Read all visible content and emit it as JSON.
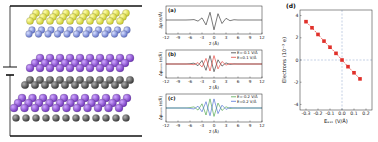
{
  "chart_data": [
    {
      "type": "line",
      "title": "(a)",
      "xlabel": "z (Å)",
      "ylabel": "Δρ (e/Å)",
      "x": [
        -12,
        -11,
        -10,
        -9,
        -8,
        -7,
        -6,
        -5,
        -4,
        -3,
        -2,
        -1,
        0,
        1,
        2,
        3,
        4,
        5,
        6,
        7,
        8,
        9,
        10,
        11,
        12
      ],
      "xlim": [
        -12,
        12
      ],
      "xticks": [
        -12,
        -9,
        -6,
        -3,
        0,
        3,
        6,
        9,
        12
      ],
      "ylim": [
        -1,
        1
      ],
      "tick_labels": "x",
      "series": [
        {
          "color": "#222222",
          "line_style": "solid",
          "values": [
            0,
            0,
            0,
            0,
            0,
            0,
            0.01,
            0.03,
            -0.08,
            0.15,
            -0.35,
            0.55,
            -0.7,
            0.45,
            -0.25,
            0.12,
            -0.05,
            0.02,
            0,
            0,
            0,
            0,
            0,
            0,
            0
          ]
        }
      ]
    },
    {
      "type": "line",
      "title": "(b)",
      "xlabel": "z (Å)",
      "ylabel": "Δρₙₒᵣₘ (e/Å)",
      "x": [
        -12,
        -11,
        -10,
        -9,
        -8,
        -7,
        -6,
        -5,
        -4,
        -3,
        -2,
        -1,
        0,
        1,
        2,
        3,
        4,
        5,
        6,
        7,
        8,
        9,
        10,
        11,
        12
      ],
      "xlim": [
        -12,
        12
      ],
      "xticks": [
        -12,
        -9,
        -6,
        -3,
        0,
        3,
        6,
        9,
        12
      ],
      "ylim": [
        -1,
        1
      ],
      "tick_labels": "x",
      "legend": "upper right",
      "series": [
        {
          "name": "E=-0.1 V/Å",
          "color": "#222222",
          "line_style": "solid",
          "values": [
            0,
            0,
            0,
            0,
            0,
            0,
            0.02,
            0.06,
            -0.12,
            0.25,
            -0.45,
            0.6,
            -0.55,
            0.3,
            -0.15,
            0.08,
            -0.03,
            0.01,
            0,
            0,
            0,
            0,
            0,
            0,
            0
          ]
        },
        {
          "name": "E=0.1 V/Å",
          "color": "#e0302a",
          "line_style": "solid",
          "values": [
            0,
            0,
            0,
            0,
            0,
            0,
            -0.02,
            -0.05,
            0.1,
            -0.22,
            0.4,
            -0.5,
            0.6,
            -0.35,
            0.18,
            -0.08,
            0.03,
            -0.01,
            0,
            0,
            0,
            0,
            0,
            0,
            0
          ]
        }
      ]
    },
    {
      "type": "line",
      "title": "(c)",
      "xlabel": "z (Å)",
      "ylabel": "Δρₙₒᵣₘ (e/Å)",
      "x": [
        -12,
        -11,
        -10,
        -9,
        -8,
        -7,
        -6,
        -5,
        -4,
        -3,
        -2,
        -1,
        0,
        1,
        2,
        3,
        4,
        5,
        6,
        7,
        8,
        9,
        10,
        11,
        12
      ],
      "xlim": [
        -12,
        12
      ],
      "xticks": [
        -12,
        -9,
        -6,
        -3,
        0,
        3,
        6,
        9,
        12
      ],
      "ylim": [
        -1,
        1
      ],
      "tick_labels": "x",
      "legend": "upper right",
      "series": [
        {
          "name": "E=-0.2 V/Å",
          "color": "#3a9a3a",
          "line_style": "solid",
          "values": [
            0,
            0,
            0,
            0,
            0,
            0,
            0.03,
            0.08,
            -0.15,
            0.3,
            -0.5,
            0.65,
            -0.6,
            0.35,
            -0.18,
            0.09,
            -0.04,
            0.01,
            0,
            0,
            0,
            0,
            0,
            0,
            0
          ]
        },
        {
          "name": "E=0.2 V/Å",
          "color": "#3a5fd0",
          "line_style": "solid",
          "values": [
            0,
            0,
            0,
            0,
            0,
            0,
            -0.03,
            -0.07,
            0.13,
            -0.27,
            0.45,
            -0.55,
            0.65,
            -0.4,
            0.2,
            -0.1,
            0.04,
            -0.01,
            0,
            0,
            0,
            0,
            0,
            0,
            0
          ]
        }
      ]
    },
    {
      "type": "line",
      "title": "(d)",
      "xlabel": "Eₑₓₜ (V/Å)",
      "ylabel": "Electrons (10⁻³ e)",
      "x": [
        -0.3,
        -0.25,
        -0.2,
        -0.15,
        -0.1,
        -0.05,
        0,
        0.05,
        0.1,
        0.15
      ],
      "xlim": [
        -0.35,
        0.25
      ],
      "xticks": [
        -0.3,
        -0.2,
        -0.1,
        {
          "value": 0,
          "label": "0.0"
        },
        0.1,
        0.2
      ],
      "ylim": [
        -4.5,
        4.5
      ],
      "yticks": [
        -4,
        -2,
        0,
        2,
        4
      ],
      "series": [
        {
          "color": "#e0302a",
          "marker": "square",
          "line_style": "dashed",
          "values": [
            3.45,
            2.9,
            2.3,
            1.7,
            1.15,
            0.6,
            0,
            -0.6,
            -1.15,
            -1.7
          ]
        }
      ]
    }
  ]
}
